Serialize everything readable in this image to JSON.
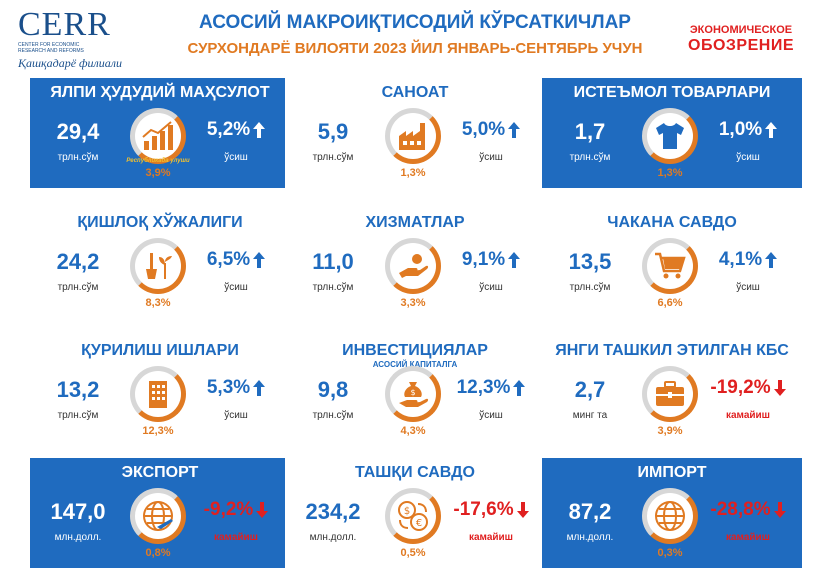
{
  "header": {
    "logo_main": "CERR",
    "logo_sub": "CENTER FOR ECONOMIC RESEARCH AND REFORMS",
    "logo_branch": "Қашқадарё филиали",
    "title": "АСОСИЙ МАКРОИҚТИСОДИЙ КЎРСАТКИЧЛАР",
    "subtitle": "СУРХОНДАРЁ ВИЛОЯТИ 2023 ЙИЛ ЯНВАРЬ-СЕНТЯБРЬ УЧУН",
    "brand_line1": "ЭКОНОМИЧЕСКОЕ",
    "brand_line2": "ОБОЗРЕНИЕ"
  },
  "colors": {
    "blue": "#1f6bbf",
    "orange": "#e07a22",
    "red": "#e02020"
  },
  "cards": [
    {
      "name": "ЯЛПИ ҲУДУДИЙ МАҲСУЛОТ",
      "value": "29,4",
      "unit": "трлн.сўм",
      "share": "3,9%",
      "note": "Республикада улуши",
      "growth": "5,2%",
      "growth_note": "ўсиш",
      "direction": "up",
      "style": "blue",
      "icon": "growth-chart-icon"
    },
    {
      "name": "САНОАТ",
      "value": "5,9",
      "unit": "трлн.сўм",
      "share": "1,3%",
      "growth": "5,0%",
      "growth_note": "ўсиш",
      "direction": "up",
      "style": "white",
      "icon": "factory-icon"
    },
    {
      "name": "ИСТЕЪМОЛ ТОВАРЛАРИ",
      "value": "1,7",
      "unit": "трлн.сўм",
      "share": "1,3%",
      "growth": "1,0%",
      "growth_note": "ўсиш",
      "direction": "up",
      "style": "blue",
      "icon": "tshirt-icon"
    },
    {
      "name": "ҚИШЛОҚ ХЎЖАЛИГИ",
      "value": "24,2",
      "unit": "трлн.сўм",
      "share": "8,3%",
      "growth": "6,5%",
      "growth_note": "ўсиш",
      "direction": "up",
      "style": "white",
      "icon": "shovel-plant-icon"
    },
    {
      "name": "ХИЗМАТЛАР",
      "value": "11,0",
      "unit": "трлн.сўм",
      "share": "3,3%",
      "growth": "9,1%",
      "growth_note": "ўсиш",
      "direction": "up",
      "style": "white",
      "icon": "service-hand-icon"
    },
    {
      "name": "ЧАКАНА САВДО",
      "value": "13,5",
      "unit": "трлн.сўм",
      "share": "6,6%",
      "growth": "4,1%",
      "growth_note": "ўсиш",
      "direction": "up",
      "style": "white",
      "icon": "shopping-cart-icon"
    },
    {
      "name": "ҚУРИЛИШ ИШЛАРИ",
      "value": "13,2",
      "unit": "трлн.сўм",
      "share": "12,3%",
      "growth": "5,3%",
      "growth_note": "ўсиш",
      "direction": "up",
      "style": "white",
      "icon": "building-icon"
    },
    {
      "name": "ИНВЕСТИЦИЯЛАР",
      "sub": "АСОСИЙ КАПИТАЛГА",
      "value": "9,8",
      "unit": "трлн.сўм",
      "share": "4,3%",
      "growth": "12,3%",
      "growth_note": "ўсиш",
      "direction": "up",
      "style": "white",
      "icon": "money-bag-hand-icon"
    },
    {
      "name": "ЯНГИ ТАШКИЛ ЭТИЛГАН КБС",
      "value": "2,7",
      "unit": "минг та",
      "share": "3,9%",
      "growth": "-19,2%",
      "growth_note": "камайиш",
      "direction": "down",
      "style": "white",
      "icon": "briefcase-icon"
    },
    {
      "name": "ЭКСПОРТ",
      "value": "147,0",
      "unit": "млн.долл.",
      "share": "0,8%",
      "growth": "-9,2%",
      "growth_note": "камайиш",
      "direction": "down",
      "style": "blue",
      "icon": "globe-plane-icon"
    },
    {
      "name": "ТАШҚИ САВДО",
      "value": "234,2",
      "unit": "млн.долл.",
      "share": "0,5%",
      "growth": "-17,6%",
      "growth_note": "камайиш",
      "direction": "down",
      "style": "white",
      "icon": "currency-exchange-icon"
    },
    {
      "name": "ИМПОРТ",
      "value": "87,2",
      "unit": "млн.долл.",
      "share": "0,3%",
      "growth": "-28,8%",
      "growth_note": "камайиш",
      "direction": "down",
      "style": "blue",
      "icon": "globe-icon"
    }
  ]
}
